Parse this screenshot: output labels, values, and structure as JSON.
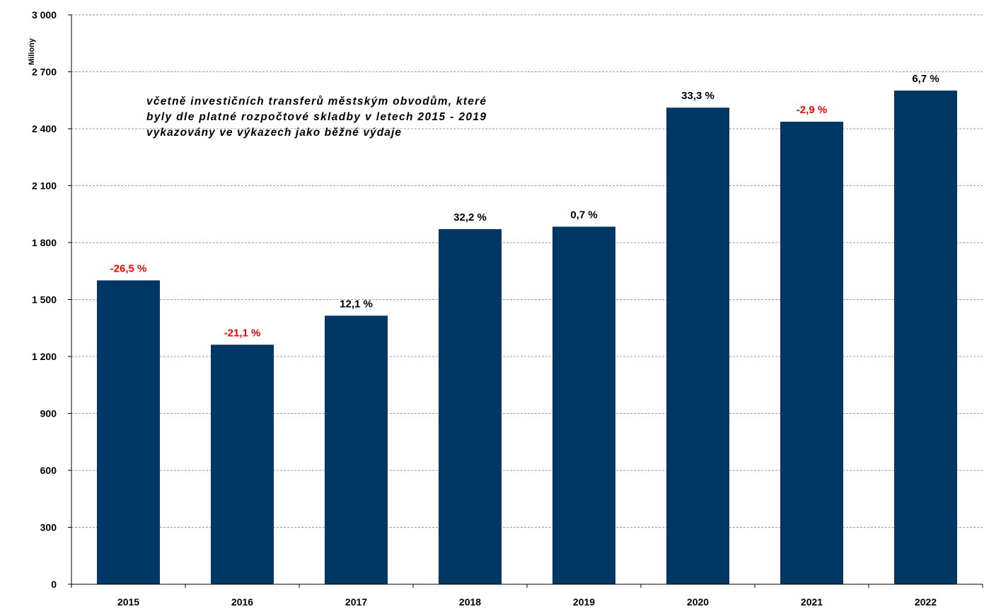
{
  "chart_data": {
    "type": "bar",
    "categories": [
      "2015",
      "2016",
      "2017",
      "2018",
      "2019",
      "2020",
      "2021",
      "2022"
    ],
    "values": [
      1601,
      1262,
      1415,
      1871,
      1884,
      2511,
      2437,
      2601
    ],
    "data_labels": [
      "-26,5 %",
      "-21,1 %",
      "12,1 %",
      "32,2 %",
      "0,7 %",
      "33,3 %",
      "-2,9 %",
      "6,7 %"
    ],
    "label_colors": [
      "#ff0000",
      "#ff0000",
      "#000000",
      "#000000",
      "#000000",
      "#000000",
      "#ff0000",
      "#000000"
    ],
    "ylabel": "Miliony",
    "ylim": [
      0,
      3000
    ],
    "yticks": [
      0,
      300,
      600,
      900,
      1200,
      1500,
      1800,
      2100,
      2400,
      2700,
      3000
    ],
    "ytick_labels": [
      "0",
      "300",
      "600",
      "900",
      "1 200",
      "1 500",
      "1 800",
      "2 100",
      "2 400",
      "2 700",
      "3 000"
    ],
    "grid": true,
    "annotation": [
      "včetně investičních transferů městským obvodům, které",
      "byly dle platné rozpočtové skladby v letech 2015 - 2019",
      "vykazovány ve výkazech jako běžné výdaje"
    ],
    "bar_color": "#003764"
  }
}
